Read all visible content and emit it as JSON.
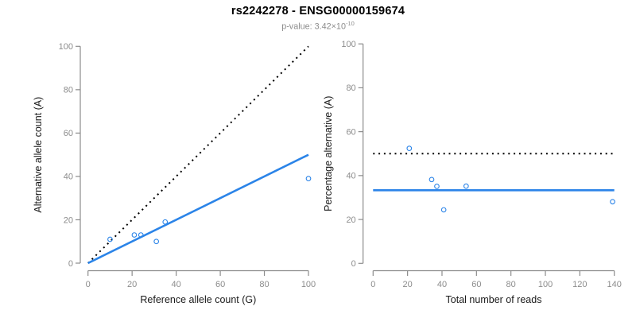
{
  "header": {
    "title": "rs2242278 - ENSG00000159674",
    "subtitle_prefix": "p-value: 3.42×10",
    "subtitle_exponent": "-10"
  },
  "colors": {
    "accent_blue": "#2b84e8",
    "line_black": "#000000",
    "axis_gray": "#8c8c8c",
    "tick_label_gray": "#8c8c8c",
    "axis_title_color": "#1a1a1a",
    "subtitle_gray": "#8c8c8c"
  },
  "chart_data": [
    {
      "id": "allele-counts-panel",
      "type": "scatter",
      "title": "",
      "xlabel": "Reference allele count (G)",
      "ylabel": "Alternative allele count (A)",
      "xlim": [
        0,
        100
      ],
      "ylim": [
        0,
        100
      ],
      "xticks": [
        0,
        20,
        40,
        60,
        80,
        100
      ],
      "yticks": [
        0,
        20,
        40,
        60,
        80,
        100
      ],
      "grid": false,
      "legend": false,
      "points": [
        [
          10,
          11
        ],
        [
          21,
          13
        ],
        [
          24,
          13
        ],
        [
          31,
          10
        ],
        [
          35,
          19
        ],
        [
          100,
          39
        ]
      ],
      "lines": [
        {
          "name": "identity-line",
          "style": "dotted",
          "color": "black",
          "x1": 0,
          "y1": 0,
          "x2": 100,
          "y2": 100
        },
        {
          "name": "fit-line",
          "style": "solid",
          "color": "blue",
          "x1": 0,
          "y1": 0,
          "x2": 100,
          "y2": 50
        }
      ]
    },
    {
      "id": "percentage-vs-reads-panel",
      "type": "scatter",
      "title": "",
      "xlabel": "Total number of reads",
      "ylabel": "Percentage alternative (A)",
      "xlim": [
        0,
        140
      ],
      "ylim": [
        0,
        100
      ],
      "xticks": [
        0,
        20,
        40,
        60,
        80,
        100,
        120,
        140
      ],
      "yticks": [
        0,
        20,
        40,
        60,
        80,
        100
      ],
      "grid": false,
      "legend": false,
      "points": [
        [
          21,
          52.4
        ],
        [
          34,
          38.2
        ],
        [
          37,
          35.1
        ],
        [
          41,
          24.4
        ],
        [
          54,
          35.2
        ],
        [
          139,
          28.1
        ]
      ],
      "lines": [
        {
          "name": "fifty-percent-line",
          "style": "dotted",
          "color": "black",
          "x1": 0,
          "y1": 50,
          "x2": 140,
          "y2": 50
        },
        {
          "name": "mean-percentage-line",
          "style": "solid",
          "color": "blue",
          "x1": 0,
          "y1": 33.3,
          "x2": 140,
          "y2": 33.3
        }
      ]
    }
  ]
}
